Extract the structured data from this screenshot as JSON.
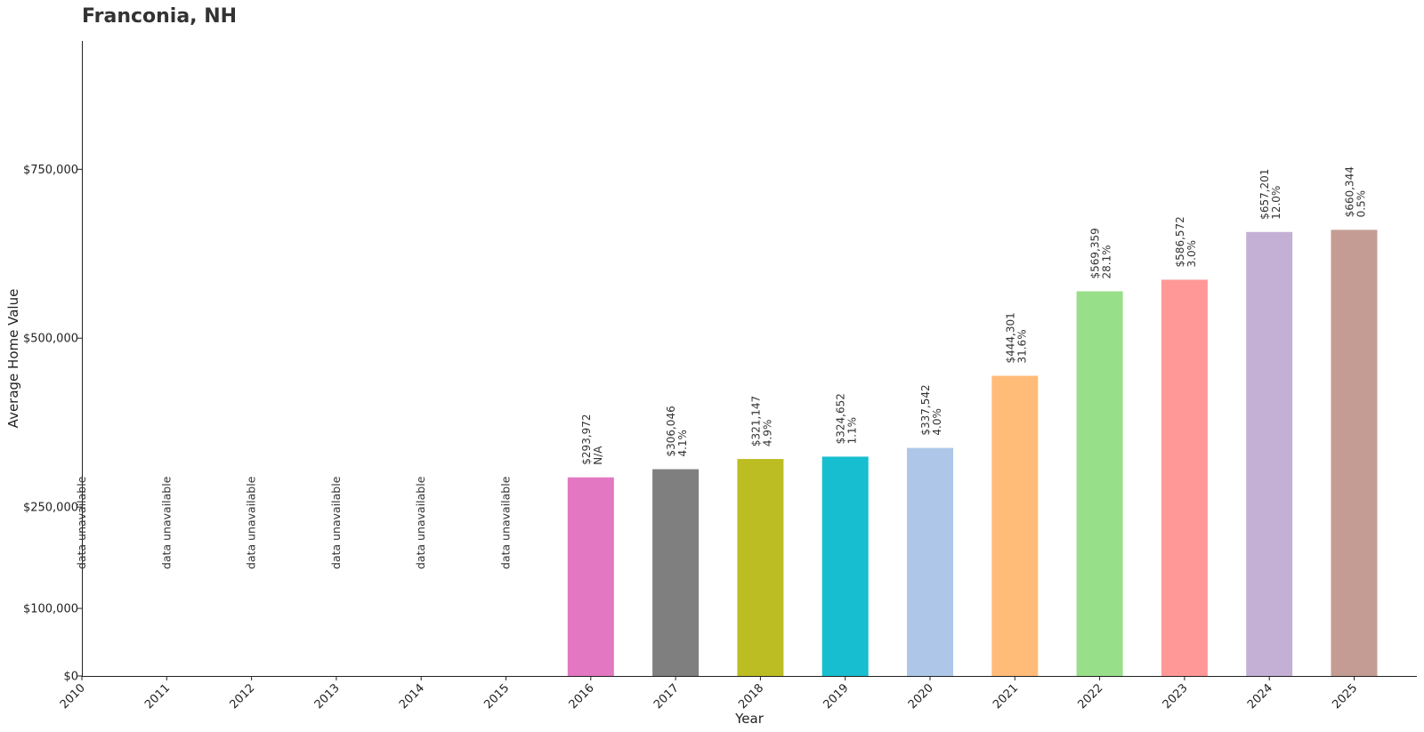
{
  "chart_data": {
    "type": "bar",
    "title": "Franconia, NH",
    "xlabel": "Year",
    "ylabel": "Average Home Value",
    "ylim": [
      0,
      940000
    ],
    "yticks": [
      {
        "value": 0,
        "label": "$0"
      },
      {
        "value": 100000,
        "label": "$100,000"
      },
      {
        "value": 250000,
        "label": "$250,000"
      },
      {
        "value": 500000,
        "label": "$500,000"
      },
      {
        "value": 750000,
        "label": "$750,000"
      }
    ],
    "categories": [
      "2010",
      "2011",
      "2012",
      "2013",
      "2014",
      "2015",
      "2016",
      "2017",
      "2018",
      "2019",
      "2020",
      "2021",
      "2022",
      "2023",
      "2024",
      "2025"
    ],
    "values": [
      null,
      null,
      null,
      null,
      null,
      null,
      293972,
      306046,
      321147,
      324652,
      337542,
      444301,
      569359,
      586572,
      657201,
      660344
    ],
    "value_labels": [
      "",
      "",
      "",
      "",
      "",
      "",
      "$293,972",
      "$306,046",
      "$321,147",
      "$324,652",
      "$337,542",
      "$444,301",
      "$569,359",
      "$586,572",
      "$657,201",
      "$660,344"
    ],
    "change_labels": [
      "",
      "",
      "",
      "",
      "",
      "",
      "N/A",
      "4.1%",
      "4.9%",
      "1.1%",
      "4.0%",
      "31.6%",
      "28.1%",
      "3.0%",
      "12.0%",
      "0.5%"
    ],
    "missing_label": "data unavailable",
    "colors": [
      "#1f77b4",
      "#ff7f0e",
      "#2ca02c",
      "#d62728",
      "#9467bd",
      "#8c564b",
      "#e377c2",
      "#7f7f7f",
      "#bcbd22",
      "#17becf",
      "#aec7e8",
      "#ffbb78",
      "#98df8a",
      "#ff9896",
      "#c5b0d5",
      "#c49c94"
    ],
    "grid": false,
    "legend": "none"
  }
}
